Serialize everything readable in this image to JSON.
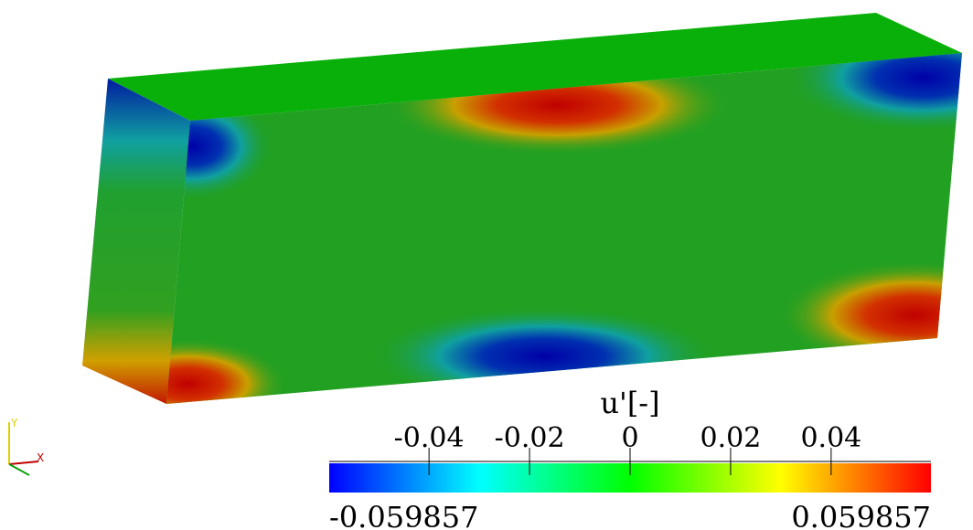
{
  "colorbar": {
    "title": "u'[-]",
    "ticks": [
      -0.04,
      -0.02,
      0,
      0.02,
      0.04
    ],
    "range": [
      -0.059857,
      0.059857
    ]
  },
  "axes": {
    "y": "Y",
    "x": "X"
  }
}
